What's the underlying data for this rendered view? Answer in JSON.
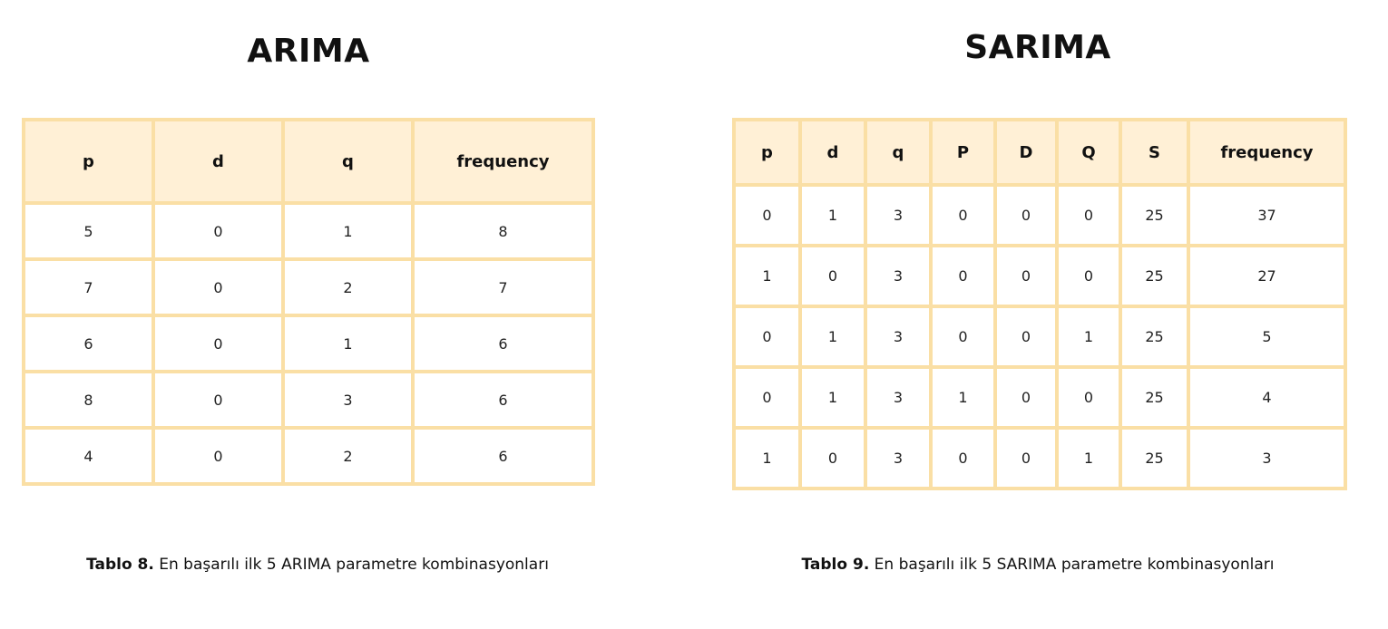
{
  "arima": {
    "title": "ARIMA",
    "headers": [
      "p",
      "d",
      "q",
      "frequency"
    ],
    "rows": [
      [
        "5",
        "0",
        "1",
        "8"
      ],
      [
        "7",
        "0",
        "2",
        "7"
      ],
      [
        "6",
        "0",
        "1",
        "6"
      ],
      [
        "8",
        "0",
        "3",
        "6"
      ],
      [
        "4",
        "0",
        "2",
        "6"
      ]
    ],
    "caption_label": "Tablo 8.",
    "caption_text": " En başarılı ilk 5 ARIMA parametre kombinasyonları"
  },
  "sarima": {
    "title": "SARIMA",
    "headers": [
      "p",
      "d",
      "q",
      "P",
      "D",
      "Q",
      "S",
      "frequency"
    ],
    "rows": [
      [
        "0",
        "1",
        "3",
        "0",
        "0",
        "0",
        "25",
        "37"
      ],
      [
        "1",
        "0",
        "3",
        "0",
        "0",
        "0",
        "25",
        "27"
      ],
      [
        "0",
        "1",
        "3",
        "0",
        "0",
        "1",
        "25",
        "5"
      ],
      [
        "0",
        "1",
        "3",
        "1",
        "0",
        "0",
        "25",
        "4"
      ],
      [
        "1",
        "0",
        "3",
        "0",
        "0",
        "1",
        "25",
        "3"
      ]
    ],
    "caption_label": "Tablo 9.",
    "caption_text": " En başarılı ilk 5 SARIMA parametre kombinasyonları"
  },
  "colors": {
    "border": "#fadfa5",
    "header_fill": "#fff0d6"
  }
}
